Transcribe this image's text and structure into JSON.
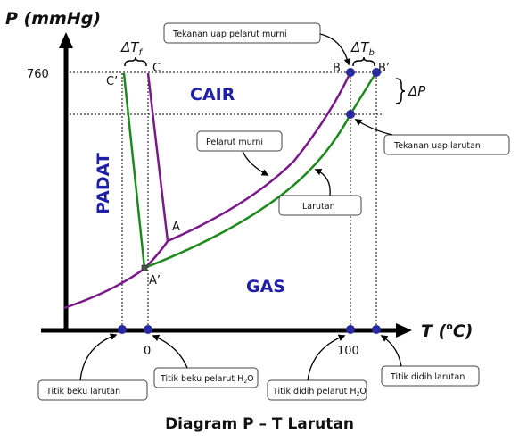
{
  "title": "Diagram P – T Larutan",
  "axes": {
    "y_label": "P (mmHg)",
    "x_label_main": "T (",
    "x_label_sup": "o",
    "x_label_end": "C)",
    "y_tick": "760",
    "x_tick_zero": "0",
    "x_tick_hundred": "100"
  },
  "regions": {
    "solid": "PADAT",
    "liquid": "CAIR",
    "gas": "GAS"
  },
  "points": {
    "A": "A",
    "A_prime": "A’",
    "B": "B",
    "B_prime": "B’",
    "C": "C",
    "C_prime": "C’"
  },
  "deltas": {
    "tf": "ΔT",
    "tf_sub": "f",
    "tb": "ΔT",
    "tb_sub": "b",
    "p": "ΔP"
  },
  "callouts": {
    "pure_vapor": "Tekanan uap pelarut murni",
    "pure_solvent": "Pelarut murni",
    "solution": "Larutan",
    "solution_vapor": "Tekanan uap larutan",
    "fp_solution": "Titik beku larutan",
    "fp_solvent_pre": "Titik beku pelarut H",
    "fp_solvent_sub": "2",
    "fp_solvent_post": "O",
    "bp_solvent_pre": "Titik didih pelarut H",
    "bp_solvent_sub": "2",
    "bp_solvent_post": "O",
    "bp_solution": "Titik didih larutan"
  },
  "colors": {
    "pure_solvent_curve": "#7a1a8a",
    "solution_curve": "#1e8a1e",
    "region_text": "#1f1fa8",
    "point_marker": "#2a2aa0",
    "axis": "#000000"
  }
}
